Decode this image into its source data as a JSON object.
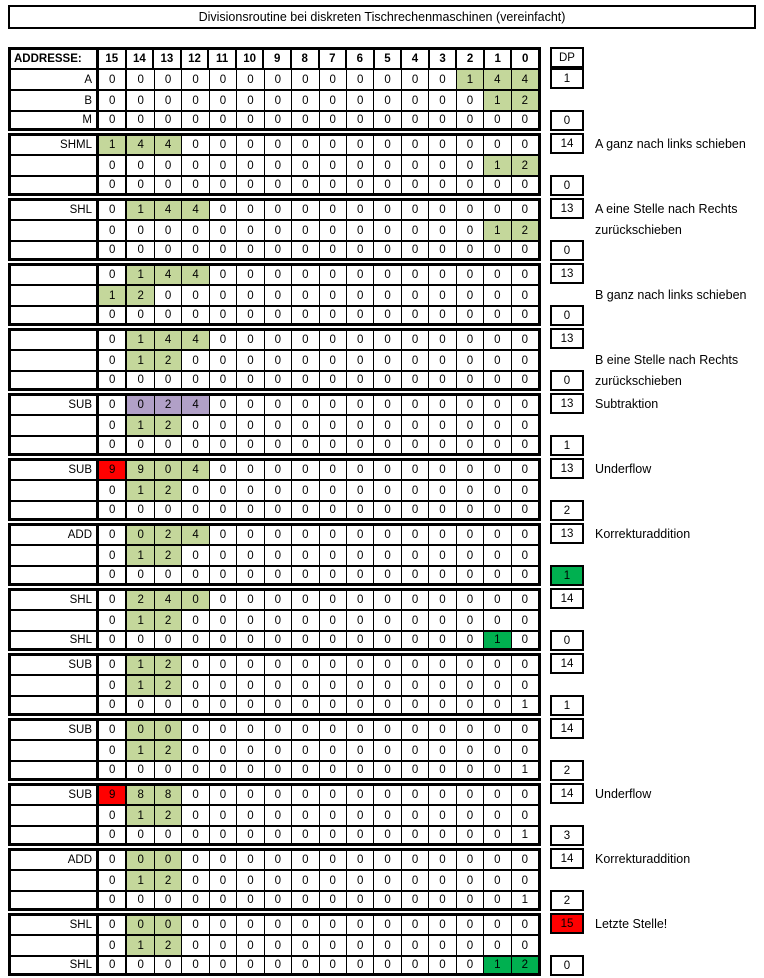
{
  "title": "Divisionsroutine bei diskreten Tischrechenmaschinen (vereinfacht)",
  "colors": {
    "highlight_green": "#c4d79b",
    "highlight_purple": "#b1a0c7",
    "highlight_red": "#ff0000",
    "accent_green": "#00b050"
  },
  "header": {
    "label": "ADDRESSE:",
    "columns": [
      "15",
      "14",
      "13",
      "12",
      "11",
      "10",
      "9",
      "8",
      "7",
      "6",
      "5",
      "4",
      "3",
      "2",
      "1",
      "0"
    ],
    "dp": "DP"
  },
  "blocks": [
    {
      "rows": [
        {
          "label": "A",
          "digits": "0000000000000144",
          "marks": "-------------ggg",
          "dp": "1",
          "dp_style": "",
          "note": ""
        },
        {
          "label": "B",
          "digits": "0000000000000012",
          "marks": "--------------gg",
          "dp": "",
          "dp_style": "",
          "note": ""
        },
        {
          "label": "M",
          "digits": "0000000000000000",
          "marks": "----------------",
          "dp": "0",
          "dp_style": "",
          "note": ""
        }
      ]
    },
    {
      "rows": [
        {
          "label": "SHML",
          "digits": "1440000000000000",
          "marks": "ggg-------------",
          "dp": "14",
          "dp_style": "",
          "note": "A ganz nach links schieben"
        },
        {
          "label": "",
          "digits": "0000000000000012",
          "marks": "--------------gg",
          "dp": "",
          "dp_style": "",
          "note": ""
        },
        {
          "label": "",
          "digits": "0000000000000000",
          "marks": "----------------",
          "dp": "0",
          "dp_style": "",
          "note": ""
        }
      ]
    },
    {
      "rows": [
        {
          "label": "SHL",
          "digits": "0144000000000000",
          "marks": "-ggg------------",
          "dp": "13",
          "dp_style": "",
          "note": "A eine Stelle nach Rechts"
        },
        {
          "label": "",
          "digits": "0000000000000012",
          "marks": "--------------gg",
          "dp": "",
          "dp_style": "",
          "note": "zurückschieben"
        },
        {
          "label": "",
          "digits": "0000000000000000",
          "marks": "----------------",
          "dp": "0",
          "dp_style": "",
          "note": ""
        }
      ]
    },
    {
      "rows": [
        {
          "label": "",
          "digits": "0144000000000000",
          "marks": "-ggg------------",
          "dp": "13",
          "dp_style": "",
          "note": ""
        },
        {
          "label": "",
          "digits": "1200000000000000",
          "marks": "gg--------------",
          "dp": "",
          "dp_style": "",
          "note": "B ganz nach links schieben"
        },
        {
          "label": "",
          "digits": "0000000000000000",
          "marks": "----------------",
          "dp": "0",
          "dp_style": "",
          "note": ""
        }
      ]
    },
    {
      "rows": [
        {
          "label": "",
          "digits": "0144000000000000",
          "marks": "-ggg------------",
          "dp": "13",
          "dp_style": "",
          "note": ""
        },
        {
          "label": "",
          "digits": "0120000000000000",
          "marks": "-gg-------------",
          "dp": "",
          "dp_style": "",
          "note": "B eine Stelle nach Rechts"
        },
        {
          "label": "",
          "digits": "0000000000000000",
          "marks": "----------------",
          "dp": "0",
          "dp_style": "",
          "note": "zurückschieben"
        }
      ]
    },
    {
      "rows": [
        {
          "label": "SUB",
          "digits": "0024000000000000",
          "marks": "-ppp------------",
          "dp": "13",
          "dp_style": "",
          "note": "Subtraktion"
        },
        {
          "label": "",
          "digits": "0120000000000000",
          "marks": "-gg-------------",
          "dp": "",
          "dp_style": "",
          "note": ""
        },
        {
          "label": "",
          "digits": "0000000000000000",
          "marks": "----------------",
          "dp": "1",
          "dp_style": "",
          "note": ""
        }
      ]
    },
    {
      "rows": [
        {
          "label": "SUB",
          "digits": "9904000000000000",
          "marks": "rggg------------",
          "dp": "13",
          "dp_style": "",
          "note": "Underflow"
        },
        {
          "label": "",
          "digits": "0120000000000000",
          "marks": "-gg-------------",
          "dp": "",
          "dp_style": "",
          "note": ""
        },
        {
          "label": "",
          "digits": "0000000000000000",
          "marks": "----------------",
          "dp": "2",
          "dp_style": "",
          "note": ""
        }
      ]
    },
    {
      "rows": [
        {
          "label": "ADD",
          "digits": "0024000000000000",
          "marks": "-ggg------------",
          "dp": "13",
          "dp_style": "",
          "note": "Korrekturaddition"
        },
        {
          "label": "",
          "digits": "0120000000000000",
          "marks": "-gg-------------",
          "dp": "",
          "dp_style": "",
          "note": ""
        },
        {
          "label": "",
          "digits": "0000000000000000",
          "marks": "----------------",
          "dp": "1",
          "dp_style": "green",
          "note": ""
        }
      ]
    },
    {
      "rows": [
        {
          "label": "SHL",
          "digits": "0240000000000000",
          "marks": "-ggg------------",
          "dp": "14",
          "dp_style": "",
          "note": ""
        },
        {
          "label": "",
          "digits": "0120000000000000",
          "marks": "-gg-------------",
          "dp": "",
          "dp_style": "",
          "note": ""
        },
        {
          "label": "SHL",
          "digits": "0000000000000010",
          "marks": "--------------G-",
          "dp": "0",
          "dp_style": "",
          "note": ""
        }
      ]
    },
    {
      "rows": [
        {
          "label": "SUB",
          "digits": "0120000000000000",
          "marks": "-gg-------------",
          "dp": "14",
          "dp_style": "",
          "note": ""
        },
        {
          "label": "",
          "digits": "0120000000000000",
          "marks": "-gg-------------",
          "dp": "",
          "dp_style": "",
          "note": ""
        },
        {
          "label": "",
          "digits": "0000000000000001",
          "marks": "----------------",
          "dp": "1",
          "dp_style": "",
          "note": ""
        }
      ]
    },
    {
      "rows": [
        {
          "label": "SUB",
          "digits": "0000000000000000",
          "marks": "-gg-------------",
          "dp": "14",
          "dp_style": "",
          "note": ""
        },
        {
          "label": "",
          "digits": "0120000000000000",
          "marks": "-gg-------------",
          "dp": "",
          "dp_style": "",
          "note": ""
        },
        {
          "label": "",
          "digits": "0000000000000001",
          "marks": "----------------",
          "dp": "2",
          "dp_style": "",
          "note": ""
        }
      ]
    },
    {
      "rows": [
        {
          "label": "SUB",
          "digits": "9880000000000000",
          "marks": "rgg-------------",
          "dp": "14",
          "dp_style": "",
          "note": "Underflow"
        },
        {
          "label": "",
          "digits": "0120000000000000",
          "marks": "-gg-------------",
          "dp": "",
          "dp_style": "",
          "note": ""
        },
        {
          "label": "",
          "digits": "0000000000000001",
          "marks": "----------------",
          "dp": "3",
          "dp_style": "",
          "note": ""
        }
      ]
    },
    {
      "rows": [
        {
          "label": "ADD",
          "digits": "0000000000000000",
          "marks": "-gg-------------",
          "dp": "14",
          "dp_style": "",
          "note": "Korrekturaddition"
        },
        {
          "label": "",
          "digits": "0120000000000000",
          "marks": "-gg-------------",
          "dp": "",
          "dp_style": "",
          "note": ""
        },
        {
          "label": "",
          "digits": "0000000000000001",
          "marks": "----------------",
          "dp": "2",
          "dp_style": "",
          "note": ""
        }
      ]
    },
    {
      "rows": [
        {
          "label": "SHL",
          "digits": "0000000000000000",
          "marks": "-gg-------------",
          "dp": "15",
          "dp_style": "red",
          "note": "Letzte Stelle!"
        },
        {
          "label": "",
          "digits": "0120000000000000",
          "marks": "-gg-------------",
          "dp": "",
          "dp_style": "",
          "note": ""
        },
        {
          "label": "SHL",
          "digits": "0000000000000012",
          "marks": "--------------GG",
          "dp": "0",
          "dp_style": "",
          "note": ""
        }
      ]
    }
  ]
}
